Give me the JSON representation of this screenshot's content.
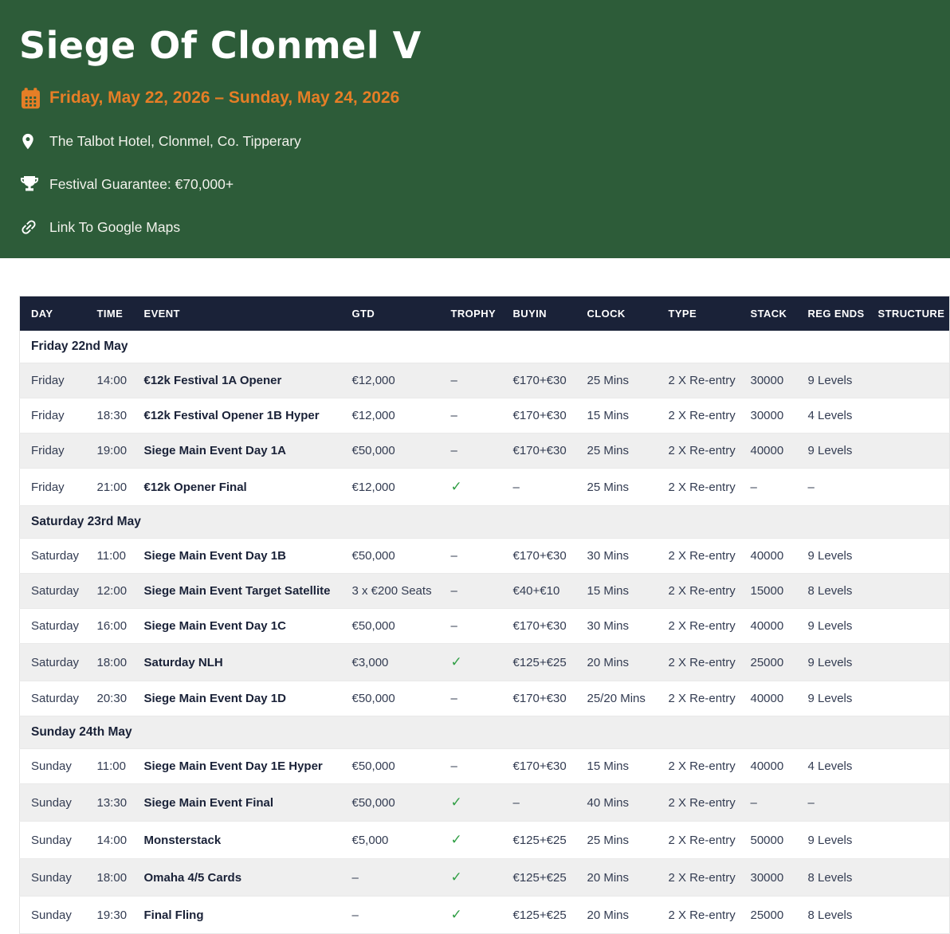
{
  "hero": {
    "title": "Siege Of Clonmel V",
    "date_range": "Friday, May 22, 2026 – Sunday, May 24, 2026",
    "venue": "The Talbot Hotel, Clonmel, Co. Tipperary",
    "guarantee": "Festival Guarantee: €70,000+",
    "maps_link_label": "Link To Google Maps",
    "icons": [
      "calendar-icon",
      "map-pin-icon",
      "trophy-icon",
      "link-icon"
    ]
  },
  "colors": {
    "hero_background": "#2d5c39",
    "accent_orange": "#e67e26",
    "table_header_navy": "#1a2238",
    "check_green": "#2f9e44",
    "row_stripe_gray": "#efefef"
  },
  "table": {
    "columns": [
      "DAY",
      "TIME",
      "EVENT",
      "GTD",
      "TROPHY",
      "BUYIN",
      "CLOCK",
      "TYPE",
      "STACK",
      "REG ENDS",
      "STRUCTURE"
    ],
    "sections": [
      {
        "label": "Friday 22nd May",
        "rows": [
          {
            "day": "Friday",
            "time": "14:00",
            "event": "€12k Festival 1A Opener",
            "gtd": "€12,000",
            "trophy": "–",
            "buyin": "€170+€30",
            "clock": "25 Mins",
            "type": "2 X Re-entry",
            "stack": "30000",
            "reg_ends": "9 Levels",
            "structure": ""
          },
          {
            "day": "Friday",
            "time": "18:30",
            "event": "€12k Festival Opener 1B Hyper",
            "gtd": "€12,000",
            "trophy": "–",
            "buyin": "€170+€30",
            "clock": "15 Mins",
            "type": "2 X Re-entry",
            "stack": "30000",
            "reg_ends": "4 Levels",
            "structure": ""
          },
          {
            "day": "Friday",
            "time": "19:00",
            "event": "Siege Main Event Day 1A",
            "gtd": "€50,000",
            "trophy": "–",
            "buyin": "€170+€30",
            "clock": "25 Mins",
            "type": "2 X Re-entry",
            "stack": "40000",
            "reg_ends": "9 Levels",
            "structure": ""
          },
          {
            "day": "Friday",
            "time": "21:00",
            "event": "€12k Opener Final",
            "gtd": "€12,000",
            "trophy": "check",
            "buyin": "–",
            "clock": "25 Mins",
            "type": "2 X Re-entry",
            "stack": "–",
            "reg_ends": "–",
            "structure": ""
          }
        ]
      },
      {
        "label": "Saturday 23rd May",
        "rows": [
          {
            "day": "Saturday",
            "time": "11:00",
            "event": "Siege Main Event Day 1B",
            "gtd": "€50,000",
            "trophy": "–",
            "buyin": "€170+€30",
            "clock": "30 Mins",
            "type": "2 X Re-entry",
            "stack": "40000",
            "reg_ends": "9 Levels",
            "structure": ""
          },
          {
            "day": "Saturday",
            "time": "12:00",
            "event": "Siege Main Event Target Satellite",
            "gtd": "3 x €200 Seats",
            "trophy": "–",
            "buyin": "€40+€10",
            "clock": "15 Mins",
            "type": "2 X Re-entry",
            "stack": "15000",
            "reg_ends": "8 Levels",
            "structure": ""
          },
          {
            "day": "Saturday",
            "time": "16:00",
            "event": "Siege Main Event Day 1C",
            "gtd": "€50,000",
            "trophy": "–",
            "buyin": "€170+€30",
            "clock": "30 Mins",
            "type": "2 X Re-entry",
            "stack": "40000",
            "reg_ends": "9 Levels",
            "structure": ""
          },
          {
            "day": "Saturday",
            "time": "18:00",
            "event": "Saturday NLH",
            "gtd": "€3,000",
            "trophy": "check",
            "buyin": "€125+€25",
            "clock": "20 Mins",
            "type": "2 X Re-entry",
            "stack": "25000",
            "reg_ends": "9 Levels",
            "structure": ""
          },
          {
            "day": "Saturday",
            "time": "20:30",
            "event": "Siege Main Event Day 1D",
            "gtd": "€50,000",
            "trophy": "–",
            "buyin": "€170+€30",
            "clock": "25/20 Mins",
            "type": "2 X Re-entry",
            "stack": "40000",
            "reg_ends": "9 Levels",
            "structure": ""
          }
        ]
      },
      {
        "label": "Sunday 24th May",
        "rows": [
          {
            "day": "Sunday",
            "time": "11:00",
            "event": "Siege Main Event Day 1E Hyper",
            "gtd": "€50,000",
            "trophy": "–",
            "buyin": "€170+€30",
            "clock": "15 Mins",
            "type": "2 X Re-entry",
            "stack": "40000",
            "reg_ends": "4 Levels",
            "structure": ""
          },
          {
            "day": "Sunday",
            "time": "13:30",
            "event": "Siege Main Event Final",
            "gtd": "€50,000",
            "trophy": "check",
            "buyin": "–",
            "clock": "40 Mins",
            "type": "2 X Re-entry",
            "stack": "–",
            "reg_ends": "–",
            "structure": ""
          },
          {
            "day": "Sunday",
            "time": "14:00",
            "event": "Monsterstack",
            "gtd": "€5,000",
            "trophy": "check",
            "buyin": "€125+€25",
            "clock": "25 Mins",
            "type": "2 X Re-entry",
            "stack": "50000",
            "reg_ends": "9 Levels",
            "structure": ""
          },
          {
            "day": "Sunday",
            "time": "18:00",
            "event": "Omaha 4/5 Cards",
            "gtd": "–",
            "trophy": "check",
            "buyin": "€125+€25",
            "clock": "20 Mins",
            "type": "2 X Re-entry",
            "stack": "30000",
            "reg_ends": "8 Levels",
            "structure": ""
          },
          {
            "day": "Sunday",
            "time": "19:30",
            "event": "Final Fling",
            "gtd": "–",
            "trophy": "check",
            "buyin": "€125+€25",
            "clock": "20 Mins",
            "type": "2 X Re-entry",
            "stack": "25000",
            "reg_ends": "8 Levels",
            "structure": ""
          }
        ]
      }
    ]
  }
}
